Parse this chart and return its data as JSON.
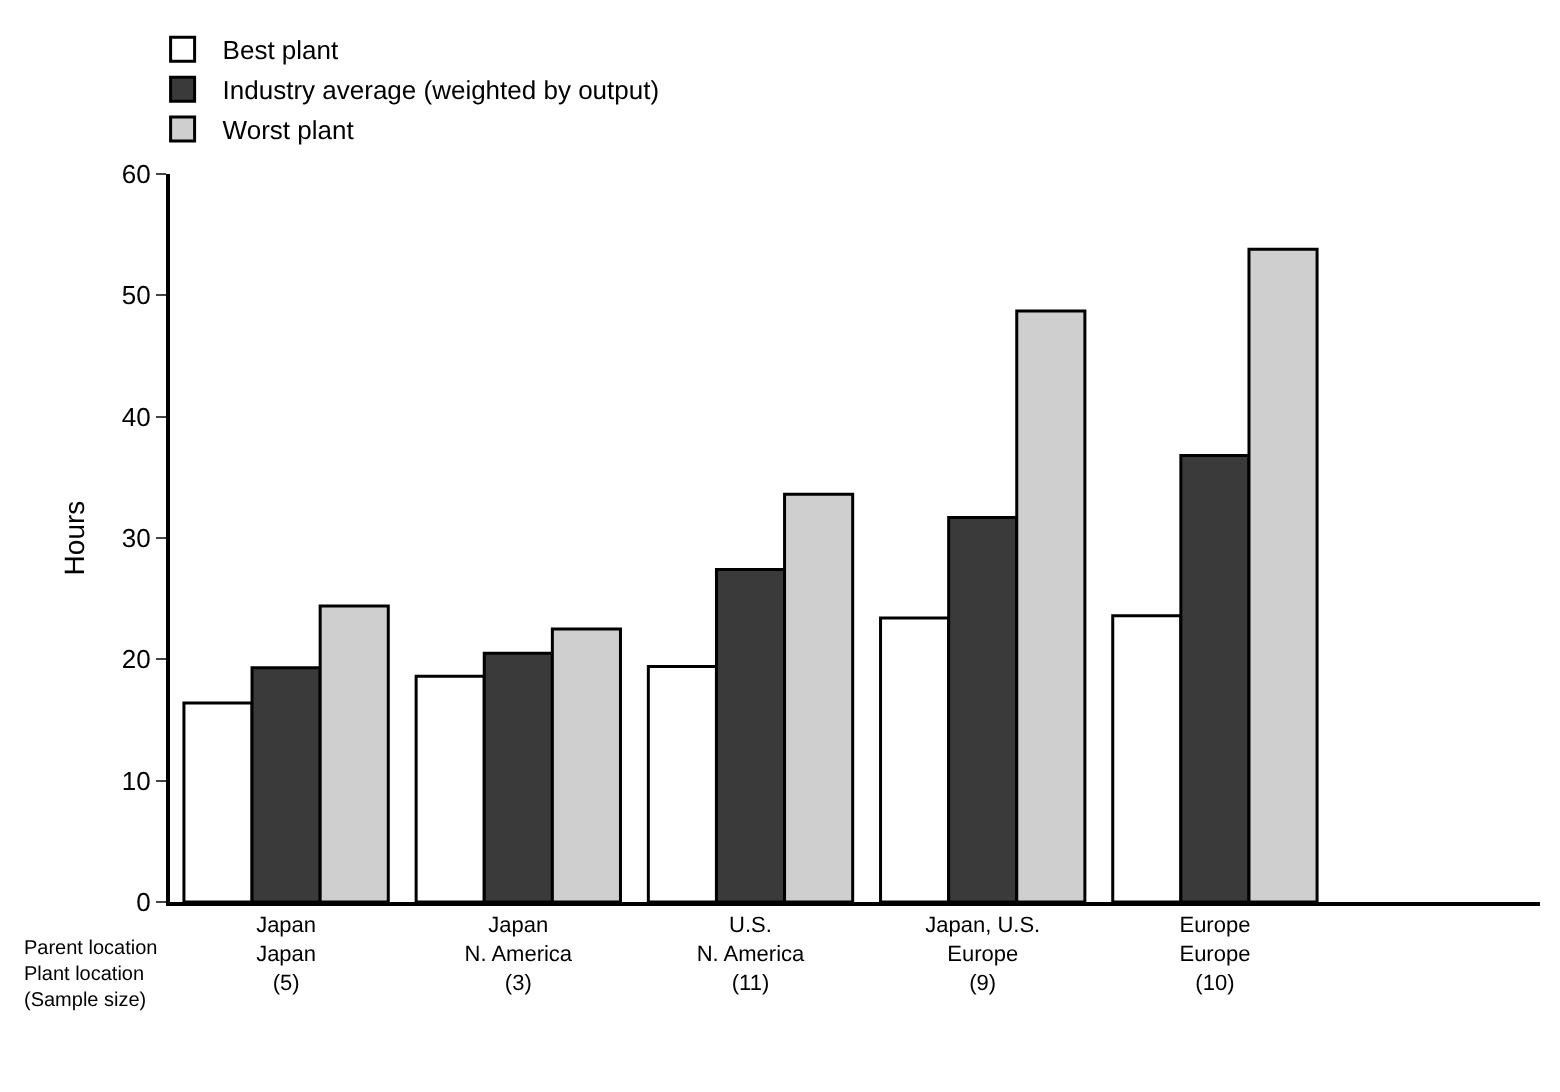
{
  "chart_data": {
    "type": "bar",
    "ylabel": "Hours",
    "categories": [
      "Japan\nJapan\n(5)",
      "Japan\nN. America\n(3)",
      "U.S.\nN. America\n(11)",
      "Japan, U.S.\nEurope\n(9)",
      "Europe\nEurope\n(10)"
    ],
    "series": [
      {
        "name": "Best plant",
        "color": "#ffffff",
        "values": [
          16.4,
          18.6,
          19.4,
          23.4,
          23.6
        ]
      },
      {
        "name": "Industry average (weighted by output)",
        "color": "#3a3a3a",
        "values": [
          19.3,
          20.5,
          27.4,
          31.7,
          36.8
        ]
      },
      {
        "name": "Worst plant",
        "color": "#cfcfcf",
        "values": [
          24.4,
          22.5,
          33.6,
          48.7,
          53.8
        ]
      }
    ],
    "ylim": [
      0,
      60
    ],
    "yticks": [
      0,
      10,
      20,
      30,
      40,
      50,
      60
    ],
    "legend": "top left",
    "annotations": [
      "Parent location\nPlant location\n(Sample size)"
    ]
  }
}
